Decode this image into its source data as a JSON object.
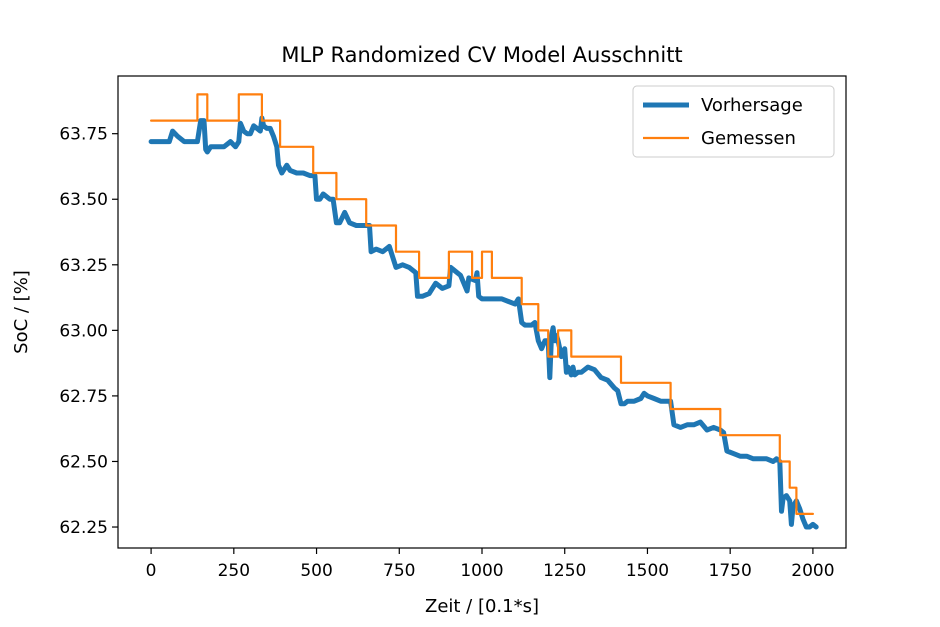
{
  "chart_data": {
    "type": "line",
    "title": "MLP Randomized CV Model Ausschnitt",
    "xlabel": "Zeit / [0.1*s]",
    "ylabel": "SoC / [%]",
    "xlim": [
      -100,
      2100
    ],
    "ylim": [
      62.17,
      63.97
    ],
    "xticks": [
      0,
      250,
      500,
      750,
      1000,
      1250,
      1500,
      1750,
      2000
    ],
    "xtick_labels": [
      "0",
      "250",
      "500",
      "750",
      "1000",
      "1250",
      "1500",
      "1750",
      "2000"
    ],
    "yticks": [
      62.25,
      62.5,
      62.75,
      63.0,
      63.25,
      63.5,
      63.75
    ],
    "ytick_labels": [
      "62.25",
      "62.50",
      "62.75",
      "63.00",
      "63.25",
      "63.50",
      "63.75"
    ],
    "legend_position": "top-right",
    "series": [
      {
        "name": "Vorhersage",
        "color": "#1f77b4",
        "x": [
          0,
          20,
          40,
          55,
          65,
          80,
          100,
          120,
          140,
          150,
          160,
          165,
          170,
          180,
          200,
          220,
          240,
          255,
          265,
          270,
          280,
          290,
          300,
          310,
          320,
          330,
          335,
          340,
          350,
          360,
          370,
          380,
          385,
          395,
          410,
          420,
          440,
          460,
          480,
          495,
          500,
          510,
          520,
          540,
          550,
          560,
          570,
          585,
          600,
          620,
          640,
          660,
          665,
          680,
          700,
          720,
          740,
          760,
          780,
          800,
          805,
          820,
          840,
          860,
          880,
          900,
          905,
          915,
          925,
          935,
          945,
          955,
          960,
          980,
          985,
          990,
          1000,
          1020,
          1040,
          1060,
          1080,
          1100,
          1110,
          1120,
          1130,
          1150,
          1160,
          1170,
          1180,
          1190,
          1200,
          1205,
          1210,
          1215,
          1220,
          1225,
          1230,
          1240,
          1250,
          1255,
          1260,
          1270,
          1275,
          1280,
          1290,
          1300,
          1320,
          1340,
          1360,
          1380,
          1400,
          1410,
          1420,
          1430,
          1440,
          1460,
          1480,
          1490,
          1500,
          1520,
          1540,
          1560,
          1570,
          1580,
          1600,
          1620,
          1640,
          1660,
          1680,
          1700,
          1720,
          1730,
          1740,
          1760,
          1780,
          1800,
          1820,
          1840,
          1860,
          1880,
          1890,
          1900,
          1905,
          1910,
          1920,
          1930,
          1935,
          1940,
          1950,
          1960,
          1970,
          1980,
          1990,
          2000,
          2010
        ],
        "values": [
          63.72,
          63.72,
          63.72,
          63.72,
          63.76,
          63.74,
          63.72,
          63.72,
          63.72,
          63.8,
          63.8,
          63.69,
          63.68,
          63.7,
          63.7,
          63.7,
          63.72,
          63.7,
          63.72,
          63.79,
          63.76,
          63.75,
          63.75,
          63.78,
          63.77,
          63.76,
          63.81,
          63.78,
          63.77,
          63.77,
          63.74,
          63.7,
          63.63,
          63.6,
          63.63,
          63.61,
          63.6,
          63.6,
          63.59,
          63.59,
          63.5,
          63.5,
          63.52,
          63.5,
          63.5,
          63.41,
          63.41,
          63.45,
          63.41,
          63.4,
          63.4,
          63.4,
          63.3,
          63.31,
          63.3,
          63.32,
          63.24,
          63.25,
          63.24,
          63.22,
          63.13,
          63.13,
          63.14,
          63.18,
          63.16,
          63.17,
          63.24,
          63.23,
          63.22,
          63.21,
          63.18,
          63.15,
          63.2,
          63.19,
          63.22,
          63.13,
          63.12,
          63.12,
          63.12,
          63.12,
          63.11,
          63.1,
          63.12,
          63.03,
          63.02,
          63.02,
          63.03,
          62.96,
          62.93,
          62.96,
          62.96,
          62.82,
          62.98,
          63.01,
          62.96,
          62.98,
          62.96,
          62.9,
          62.93,
          62.84,
          62.86,
          62.83,
          62.86,
          62.83,
          62.84,
          62.84,
          62.86,
          62.85,
          62.82,
          62.81,
          62.78,
          62.77,
          62.72,
          62.72,
          62.73,
          62.73,
          62.74,
          62.76,
          62.75,
          62.74,
          62.73,
          62.73,
          62.73,
          62.64,
          62.63,
          62.64,
          62.64,
          62.65,
          62.62,
          62.63,
          62.62,
          62.61,
          62.54,
          62.53,
          62.52,
          62.52,
          62.51,
          62.51,
          62.51,
          62.5,
          62.51,
          62.5,
          62.31,
          62.36,
          62.37,
          62.35,
          62.26,
          62.33,
          62.35,
          62.32,
          62.28,
          62.25,
          62.25,
          62.26,
          62.25
        ]
      },
      {
        "name": "Gemessen",
        "color": "#ff7f0e",
        "x": [
          0,
          140,
          140,
          170,
          170,
          265,
          265,
          335,
          335,
          390,
          390,
          490,
          490,
          560,
          560,
          650,
          650,
          740,
          740,
          810,
          810,
          900,
          900,
          970,
          970,
          1000,
          1000,
          1030,
          1030,
          1120,
          1120,
          1170,
          1170,
          1200,
          1200,
          1230,
          1230,
          1270,
          1270,
          1420,
          1420,
          1570,
          1570,
          1720,
          1720,
          1900,
          1900,
          1930,
          1930,
          1950,
          1950,
          2000
        ],
        "values": [
          63.8,
          63.8,
          63.9,
          63.9,
          63.8,
          63.8,
          63.9,
          63.9,
          63.8,
          63.8,
          63.7,
          63.7,
          63.6,
          63.6,
          63.5,
          63.5,
          63.4,
          63.4,
          63.3,
          63.3,
          63.2,
          63.2,
          63.3,
          63.3,
          63.2,
          63.2,
          63.3,
          63.3,
          63.2,
          63.2,
          63.1,
          63.1,
          63.0,
          63.0,
          62.9,
          62.9,
          63.0,
          63.0,
          62.9,
          62.9,
          62.8,
          62.8,
          62.7,
          62.7,
          62.6,
          62.6,
          62.5,
          62.5,
          62.4,
          62.4,
          62.3,
          62.3
        ]
      }
    ]
  }
}
